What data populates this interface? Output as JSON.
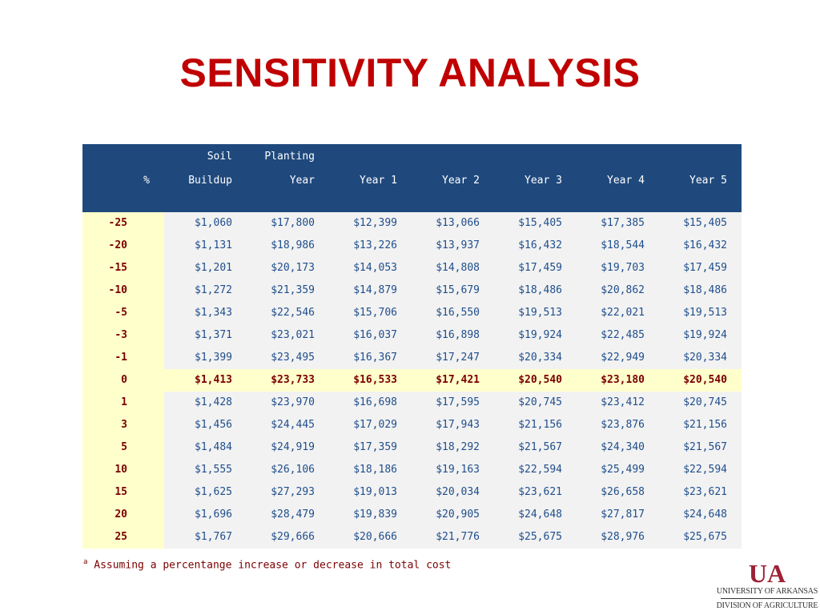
{
  "title": "SENSITIVITY ANALYSIS",
  "table": {
    "header_row1": [
      "",
      "Soil",
      "Planting",
      "",
      "",
      "",
      "",
      ""
    ],
    "header_row2": [
      "%",
      "Buildup",
      "Year",
      "Year 1",
      "Year 2",
      "Year 3",
      "Year 4",
      "Year 5"
    ],
    "rows": [
      [
        "-25",
        "$1,060",
        "$17,800",
        "$12,399",
        "$13,066",
        "$15,405",
        "$17,385",
        "$15,405"
      ],
      [
        "-20",
        "$1,131",
        "$18,986",
        "$13,226",
        "$13,937",
        "$16,432",
        "$18,544",
        "$16,432"
      ],
      [
        "-15",
        "$1,201",
        "$20,173",
        "$14,053",
        "$14,808",
        "$17,459",
        "$19,703",
        "$17,459"
      ],
      [
        "-10",
        "$1,272",
        "$21,359",
        "$14,879",
        "$15,679",
        "$18,486",
        "$20,862",
        "$18,486"
      ],
      [
        "-5",
        "$1,343",
        "$22,546",
        "$15,706",
        "$16,550",
        "$19,513",
        "$22,021",
        "$19,513"
      ],
      [
        "-3",
        "$1,371",
        "$23,021",
        "$16,037",
        "$16,898",
        "$19,924",
        "$22,485",
        "$19,924"
      ],
      [
        "-1",
        "$1,399",
        "$23,495",
        "$16,367",
        "$17,247",
        "$20,334",
        "$22,949",
        "$20,334"
      ],
      [
        "0",
        "$1,413",
        "$23,733",
        "$16,533",
        "$17,421",
        "$20,540",
        "$23,180",
        "$20,540"
      ],
      [
        "1",
        "$1,428",
        "$23,970",
        "$16,698",
        "$17,595",
        "$20,745",
        "$23,412",
        "$20,745"
      ],
      [
        "3",
        "$1,456",
        "$24,445",
        "$17,029",
        "$17,943",
        "$21,156",
        "$23,876",
        "$21,156"
      ],
      [
        "5",
        "$1,484",
        "$24,919",
        "$17,359",
        "$18,292",
        "$21,567",
        "$24,340",
        "$21,567"
      ],
      [
        "10",
        "$1,555",
        "$26,106",
        "$18,186",
        "$19,163",
        "$22,594",
        "$25,499",
        "$22,594"
      ],
      [
        "15",
        "$1,625",
        "$27,293",
        "$19,013",
        "$20,034",
        "$23,621",
        "$26,658",
        "$23,621"
      ],
      [
        "20",
        "$1,696",
        "$28,479",
        "$19,839",
        "$20,905",
        "$24,648",
        "$27,817",
        "$24,648"
      ],
      [
        "25",
        "$1,767",
        "$29,666",
        "$20,666",
        "$21,776",
        "$25,675",
        "$28,976",
        "$25,675"
      ]
    ],
    "highlight_row": "0"
  },
  "footnote": {
    "marker": "a",
    "text": "Assuming a percentange increase or decrease in total cost"
  },
  "logo": {
    "mark": "UA",
    "line1": "UNIVERSITY OF ARKANSAS",
    "line2": "DIVISION OF AGRICULTURE"
  },
  "colors": {
    "title": "#c00000",
    "header_bg": "#1f497d",
    "pct_bg": "#ffffcc",
    "highlight_text": "#7a0000",
    "cell_text": "#1f4e8c"
  }
}
